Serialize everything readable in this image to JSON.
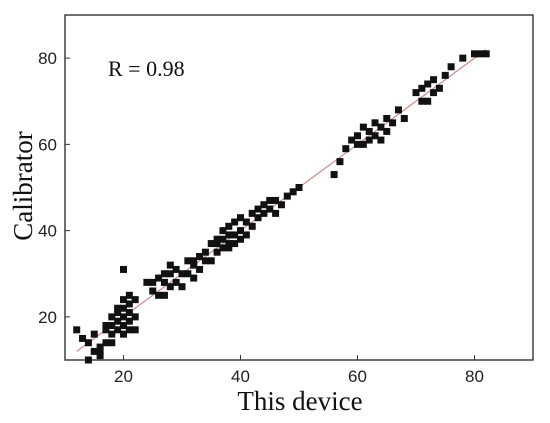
{
  "chart_data": {
    "type": "scatter",
    "xlabel": "This device",
    "ylabel": "Calibrator",
    "annotation": "R = 0.98",
    "xlim": [
      10,
      90
    ],
    "ylim": [
      10,
      90
    ],
    "xticks": [
      20,
      40,
      60,
      80
    ],
    "yticks": [
      20,
      40,
      60,
      80
    ],
    "grid": false,
    "colors": {
      "points": "#111111",
      "fit_line": "#c98a8a",
      "frame": "#333333"
    },
    "fit_line": {
      "x": [
        12,
        82
      ],
      "y": [
        12,
        82
      ]
    },
    "series": [
      {
        "x": [
          12,
          13,
          14,
          15,
          15,
          16,
          16,
          17,
          17,
          17,
          18,
          18,
          18,
          19,
          19,
          19,
          19,
          20,
          20,
          20,
          20,
          20,
          21,
          21,
          21,
          21,
          21,
          22,
          22,
          22,
          20,
          18,
          16,
          14,
          24,
          25,
          25,
          26,
          26,
          27,
          27,
          27,
          28,
          28,
          28,
          29,
          29,
          30,
          30,
          31,
          31,
          32,
          32,
          32,
          33,
          33,
          34,
          34,
          35,
          35,
          36,
          36,
          36,
          37,
          37,
          37,
          38,
          38,
          38,
          38,
          39,
          39,
          39,
          40,
          40,
          40,
          41,
          41,
          42,
          42,
          43,
          43,
          44,
          44,
          45,
          45,
          46,
          46,
          47,
          48,
          49,
          50,
          56,
          57,
          58,
          59,
          60,
          60,
          61,
          61,
          62,
          62,
          63,
          63,
          64,
          64,
          65,
          65,
          66,
          67,
          68,
          70,
          71,
          71,
          72,
          72,
          73,
          73,
          74,
          75,
          76,
          78,
          80,
          81,
          82
        ],
        "y": [
          17,
          15,
          14,
          12,
          16,
          11,
          13,
          14,
          17,
          18,
          16,
          18,
          20,
          17,
          19,
          21,
          22,
          16,
          18,
          20,
          22,
          24,
          17,
          19,
          21,
          23,
          25,
          17,
          20,
          24,
          31,
          14,
          12,
          10,
          28,
          26,
          28,
          25,
          29,
          25,
          28,
          30,
          27,
          30,
          32,
          28,
          31,
          27,
          30,
          30,
          33,
          29,
          32,
          33,
          31,
          34,
          33,
          35,
          33,
          37,
          35,
          37,
          38,
          36,
          38,
          40,
          36,
          37,
          39,
          41,
          37,
          39,
          42,
          38,
          40,
          43,
          39,
          42,
          41,
          44,
          43,
          45,
          44,
          46,
          45,
          47,
          44,
          47,
          46,
          48,
          49,
          50,
          53,
          56,
          59,
          61,
          60,
          62,
          60,
          64,
          61,
          63,
          62,
          65,
          61,
          64,
          63,
          66,
          65,
          68,
          66,
          72,
          70,
          73,
          70,
          74,
          72,
          75,
          73,
          76,
          78,
          80,
          81,
          81,
          81
        ]
      }
    ]
  }
}
